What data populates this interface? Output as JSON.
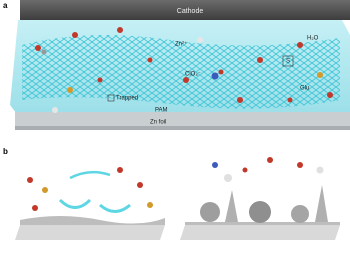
{
  "panel_a": {
    "label": "a",
    "cathode": "Cathode",
    "zn_ion": "Zn²⁺",
    "water": "H₂O",
    "perchlorate": "ClO₄⁻",
    "s_label": "S",
    "glu": "Glu",
    "trapped": "Trapped",
    "pam": "PAM",
    "zn_foil": "Zn foil"
  },
  "panel_b": {
    "label": "b"
  }
}
